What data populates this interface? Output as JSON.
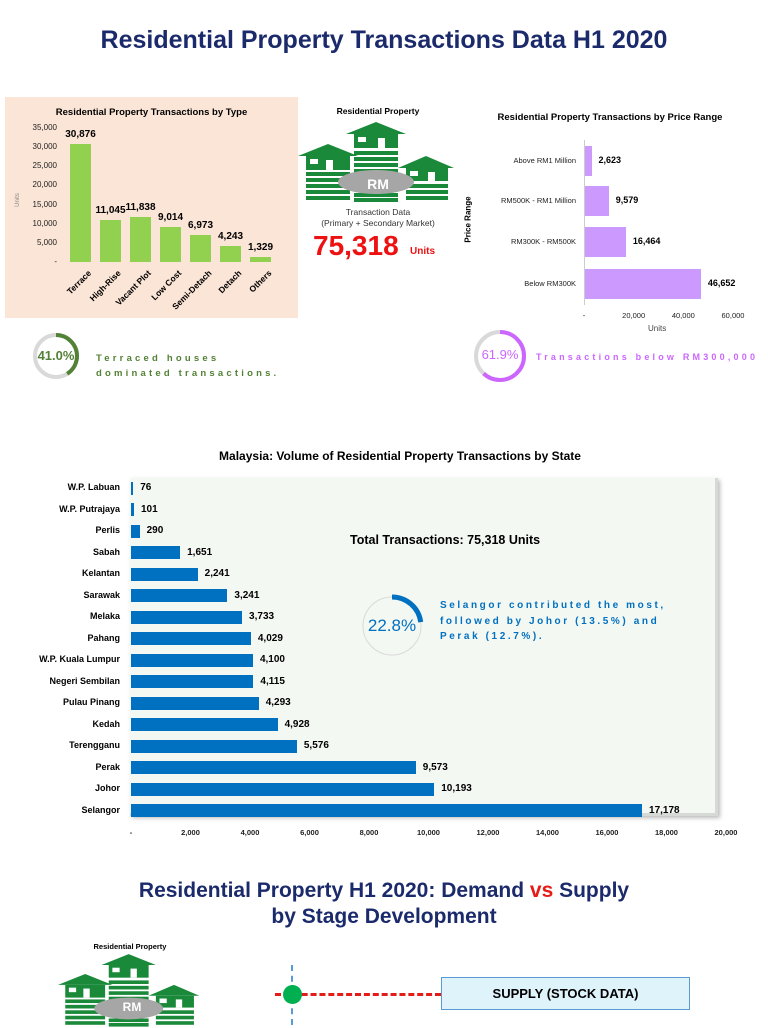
{
  "header": {
    "title": "Residential Property Transactions Data H1 2020"
  },
  "center": {
    "logo_label": "Residential Property",
    "logo_text": "RM",
    "caption_line1": "Transaction Data",
    "caption_line2": "(Primary + Secondary Market)",
    "total": "75,318",
    "total_unit": "Units"
  },
  "highlights": {
    "terrace": {
      "percent": "41.0%",
      "value": 41.0,
      "text": "Terraced houses dominated transactions.",
      "color": "#538135"
    },
    "below300k": {
      "percent": "61.9%",
      "value": 61.9,
      "text": "Transactions below RM300,000",
      "color": "#cc66ff"
    },
    "selangor": {
      "percent": "22.8%",
      "value": 22.8,
      "text": "Selangor contributed the most, followed by Johor (13.5%) and Perak (12.7%).",
      "color": "#0070c0"
    }
  },
  "state_total": "Total Transactions:  75,318 Units",
  "section2": {
    "title_part1": "Residential Property H1 2020: Demand ",
    "title_vs": "vs",
    "title_part2": " Supply",
    "title_line2": "by Stage Development",
    "logo_label": "Residential Property",
    "logo_text": "RM",
    "supply_box": "SUPPLY (STOCK DATA)"
  },
  "chart_data": [
    {
      "type": "bar",
      "title": "Residential Property Transactions by Type",
      "ylabel": "Units",
      "xlabel": "",
      "categories": [
        "Terrace",
        "High-Rise",
        "Vacant Plot",
        "Low Cost",
        "Semi-Detach",
        "Detach",
        "Others"
      ],
      "values": [
        30876,
        11045,
        11838,
        9014,
        6973,
        4243,
        1329
      ],
      "data_labels": [
        "30,876",
        "11,045",
        "11,838",
        "9,014",
        "6,973",
        "4,243",
        "1,329"
      ],
      "ylim": [
        0,
        35000
      ],
      "yticks": [
        "-",
        "5,000",
        "10,000",
        "15,000",
        "20,000",
        "25,000",
        "30,000",
        "35,000"
      ],
      "grid": false,
      "color": "#92d050"
    },
    {
      "type": "bar",
      "orientation": "horizontal",
      "title": "Residential Property Transactions by Price Range",
      "ylabel": "Price Range",
      "xlabel": "Units",
      "categories": [
        "Above RM1 Million",
        "RM500K - RM1 Million",
        "RM300K - RM500K",
        "Below RM300K"
      ],
      "values": [
        2623,
        9579,
        16464,
        46652
      ],
      "data_labels": [
        "2,623",
        "9,579",
        "16,464",
        "46,652"
      ],
      "xlim": [
        0,
        60000
      ],
      "xticks": [
        "-",
        "20,000",
        "40,000",
        "60,000"
      ],
      "grid": false,
      "color": "#cc99ff"
    },
    {
      "type": "bar",
      "orientation": "horizontal",
      "title": "Malaysia: Volume of Residential Property Transactions by State",
      "categories": [
        "W.P. Labuan",
        "W.P. Putrajaya",
        "Perlis",
        "Sabah",
        "Kelantan",
        "Sarawak",
        "Melaka",
        "Pahang",
        "W.P. Kuala Lumpur",
        "Negeri Sembilan",
        "Pulau Pinang",
        "Kedah",
        "Terengganu",
        "Perak",
        "Johor",
        "Selangor"
      ],
      "values": [
        76,
        101,
        290,
        1651,
        2241,
        3241,
        3733,
        4029,
        4100,
        4115,
        4293,
        4928,
        5576,
        9573,
        10193,
        17178
      ],
      "data_labels": [
        "76",
        "101",
        "290",
        "1,651",
        "2,241",
        "3,241",
        "3,733",
        "4,029",
        "4,100",
        "4,115",
        "4,293",
        "4,928",
        "5,576",
        "9,573",
        "10,193",
        "17,178"
      ],
      "xlim": [
        0,
        20000
      ],
      "xticks": [
        "-",
        "2,000",
        "4,000",
        "6,000",
        "8,000",
        "10,000",
        "12,000",
        "14,000",
        "16,000",
        "18,000",
        "20,000"
      ],
      "grid": false,
      "color": "#0070c0"
    }
  ]
}
